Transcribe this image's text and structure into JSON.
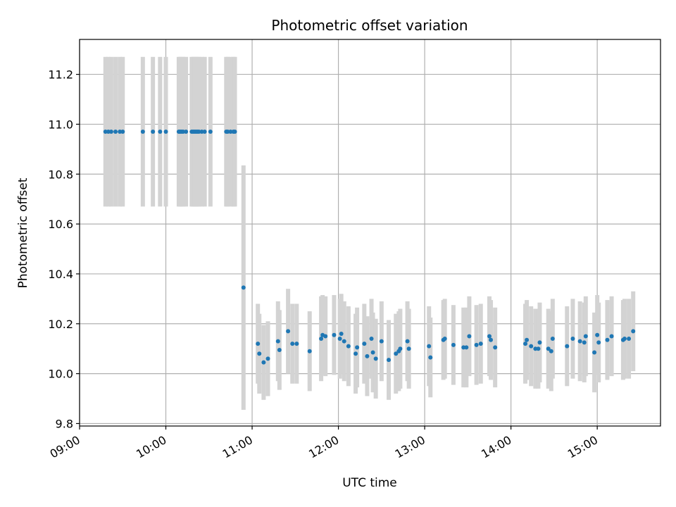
{
  "chart_data": {
    "type": "scatter",
    "title": "Photometric offset variation",
    "xlabel": "UTC time",
    "ylabel": "Photometric offset",
    "grid": true,
    "xlim": [
      "09:00",
      "15:44"
    ],
    "ylim": [
      9.79,
      11.34
    ],
    "x_ticks": [
      "09:00",
      "10:00",
      "11:00",
      "12:00",
      "13:00",
      "14:00",
      "15:00"
    ],
    "y_ticks": [
      "9.8",
      "10.0",
      "10.2",
      "10.4",
      "10.6",
      "10.8",
      "11.0",
      "11.2"
    ],
    "colors": {
      "points": "#1f77b4",
      "errorbars": "#d3d3d3",
      "grid": "#b0b0b0"
    },
    "series": [
      {
        "errorbar_style": "bar",
        "points": [
          {
            "x": "09:18",
            "y": 10.97,
            "err": 0.3
          },
          {
            "x": "09:20",
            "y": 10.97,
            "err": 0.3
          },
          {
            "x": "09:22",
            "y": 10.97,
            "err": 0.3
          },
          {
            "x": "09:25",
            "y": 10.97,
            "err": 0.3
          },
          {
            "x": "09:28",
            "y": 10.97,
            "err": 0.3
          },
          {
            "x": "09:30",
            "y": 10.97,
            "err": 0.3
          },
          {
            "x": "09:44",
            "y": 10.97,
            "err": 0.3
          },
          {
            "x": "09:51",
            "y": 10.97,
            "err": 0.3
          },
          {
            "x": "09:56",
            "y": 10.97,
            "err": 0.3
          },
          {
            "x": "10:00",
            "y": 10.97,
            "err": 0.3
          },
          {
            "x": "10:09",
            "y": 10.97,
            "err": 0.3
          },
          {
            "x": "10:10",
            "y": 10.97,
            "err": 0.3
          },
          {
            "x": "10:11",
            "y": 10.97,
            "err": 0.3
          },
          {
            "x": "10:12",
            "y": 10.97,
            "err": 0.3
          },
          {
            "x": "10:14",
            "y": 10.97,
            "err": 0.3
          },
          {
            "x": "10:18",
            "y": 10.97,
            "err": 0.3
          },
          {
            "x": "10:19",
            "y": 10.97,
            "err": 0.3
          },
          {
            "x": "10:20",
            "y": 10.97,
            "err": 0.3
          },
          {
            "x": "10:21",
            "y": 10.97,
            "err": 0.3
          },
          {
            "x": "10:22",
            "y": 10.97,
            "err": 0.3
          },
          {
            "x": "10:23",
            "y": 10.97,
            "err": 0.3
          },
          {
            "x": "10:25",
            "y": 10.97,
            "err": 0.3
          },
          {
            "x": "10:27",
            "y": 10.97,
            "err": 0.3
          },
          {
            "x": "10:31",
            "y": 10.97,
            "err": 0.3
          },
          {
            "x": "10:42",
            "y": 10.97,
            "err": 0.3
          },
          {
            "x": "10:43",
            "y": 10.97,
            "err": 0.3
          },
          {
            "x": "10:45",
            "y": 10.97,
            "err": 0.3
          },
          {
            "x": "10:47",
            "y": 10.97,
            "err": 0.3
          },
          {
            "x": "10:48",
            "y": 10.97,
            "err": 0.3
          },
          {
            "x": "10:54",
            "y": 10.345,
            "err": 0.49
          },
          {
            "x": "11:04",
            "y": 10.12,
            "err": 0.16
          },
          {
            "x": "11:05",
            "y": 10.08,
            "err": 0.16
          },
          {
            "x": "11:08",
            "y": 10.045,
            "err": 0.15
          },
          {
            "x": "11:11",
            "y": 10.06,
            "err": 0.15
          },
          {
            "x": "11:18",
            "y": 10.13,
            "err": 0.16
          },
          {
            "x": "11:19",
            "y": 10.095,
            "err": 0.16
          },
          {
            "x": "11:25",
            "y": 10.17,
            "err": 0.17
          },
          {
            "x": "11:28",
            "y": 10.12,
            "err": 0.16
          },
          {
            "x": "11:31",
            "y": 10.12,
            "err": 0.16
          },
          {
            "x": "11:40",
            "y": 10.09,
            "err": 0.16
          },
          {
            "x": "11:48",
            "y": 10.14,
            "err": 0.17
          },
          {
            "x": "11:49",
            "y": 10.155,
            "err": 0.16
          },
          {
            "x": "11:51",
            "y": 10.15,
            "err": 0.16
          },
          {
            "x": "11:57",
            "y": 10.155,
            "err": 0.16
          },
          {
            "x": "12:01",
            "y": 10.14,
            "err": 0.16
          },
          {
            "x": "12:02",
            "y": 10.16,
            "err": 0.16
          },
          {
            "x": "12:04",
            "y": 10.13,
            "err": 0.16
          },
          {
            "x": "12:07",
            "y": 10.11,
            "err": 0.16
          },
          {
            "x": "12:12",
            "y": 10.08,
            "err": 0.16
          },
          {
            "x": "12:13",
            "y": 10.105,
            "err": 0.16
          },
          {
            "x": "12:18",
            "y": 10.12,
            "err": 0.16
          },
          {
            "x": "12:20",
            "y": 10.07,
            "err": 0.16
          },
          {
            "x": "12:23",
            "y": 10.14,
            "err": 0.16
          },
          {
            "x": "12:24",
            "y": 10.085,
            "err": 0.16
          },
          {
            "x": "12:26",
            "y": 10.06,
            "err": 0.16
          },
          {
            "x": "12:30",
            "y": 10.13,
            "err": 0.16
          },
          {
            "x": "12:35",
            "y": 10.055,
            "err": 0.16
          },
          {
            "x": "12:40",
            "y": 10.08,
            "err": 0.16
          },
          {
            "x": "12:42",
            "y": 10.09,
            "err": 0.16
          },
          {
            "x": "12:43",
            "y": 10.1,
            "err": 0.16
          },
          {
            "x": "12:48",
            "y": 10.13,
            "err": 0.16
          },
          {
            "x": "12:49",
            "y": 10.1,
            "err": 0.16
          },
          {
            "x": "13:03",
            "y": 10.11,
            "err": 0.16
          },
          {
            "x": "13:04",
            "y": 10.065,
            "err": 0.16
          },
          {
            "x": "13:13",
            "y": 10.135,
            "err": 0.16
          },
          {
            "x": "13:14",
            "y": 10.14,
            "err": 0.16
          },
          {
            "x": "13:20",
            "y": 10.115,
            "err": 0.16
          },
          {
            "x": "13:27",
            "y": 10.105,
            "err": 0.16
          },
          {
            "x": "13:29",
            "y": 10.105,
            "err": 0.16
          },
          {
            "x": "13:31",
            "y": 10.15,
            "err": 0.16
          },
          {
            "x": "13:36",
            "y": 10.115,
            "err": 0.16
          },
          {
            "x": "13:39",
            "y": 10.12,
            "err": 0.16
          },
          {
            "x": "13:45",
            "y": 10.15,
            "err": 0.16
          },
          {
            "x": "13:46",
            "y": 10.135,
            "err": 0.16
          },
          {
            "x": "13:49",
            "y": 10.105,
            "err": 0.16
          },
          {
            "x": "14:10",
            "y": 10.12,
            "err": 0.16
          },
          {
            "x": "14:11",
            "y": 10.135,
            "err": 0.16
          },
          {
            "x": "14:14",
            "y": 10.11,
            "err": 0.16
          },
          {
            "x": "14:17",
            "y": 10.1,
            "err": 0.16
          },
          {
            "x": "14:19",
            "y": 10.1,
            "err": 0.16
          },
          {
            "x": "14:20",
            "y": 10.125,
            "err": 0.16
          },
          {
            "x": "14:26",
            "y": 10.1,
            "err": 0.16
          },
          {
            "x": "14:28",
            "y": 10.09,
            "err": 0.16
          },
          {
            "x": "14:29",
            "y": 10.14,
            "err": 0.16
          },
          {
            "x": "14:39",
            "y": 10.11,
            "err": 0.16
          },
          {
            "x": "14:43",
            "y": 10.14,
            "err": 0.16
          },
          {
            "x": "14:48",
            "y": 10.13,
            "err": 0.16
          },
          {
            "x": "14:51",
            "y": 10.125,
            "err": 0.16
          },
          {
            "x": "14:52",
            "y": 10.15,
            "err": 0.16
          },
          {
            "x": "14:58",
            "y": 10.085,
            "err": 0.16
          },
          {
            "x": "15:00",
            "y": 10.155,
            "err": 0.16
          },
          {
            "x": "15:01",
            "y": 10.125,
            "err": 0.16
          },
          {
            "x": "15:07",
            "y": 10.135,
            "err": 0.16
          },
          {
            "x": "15:10",
            "y": 10.15,
            "err": 0.16
          },
          {
            "x": "15:18",
            "y": 10.135,
            "err": 0.16
          },
          {
            "x": "15:19",
            "y": 10.14,
            "err": 0.16
          },
          {
            "x": "15:22",
            "y": 10.14,
            "err": 0.16
          },
          {
            "x": "15:25",
            "y": 10.17,
            "err": 0.16
          }
        ]
      }
    ]
  }
}
